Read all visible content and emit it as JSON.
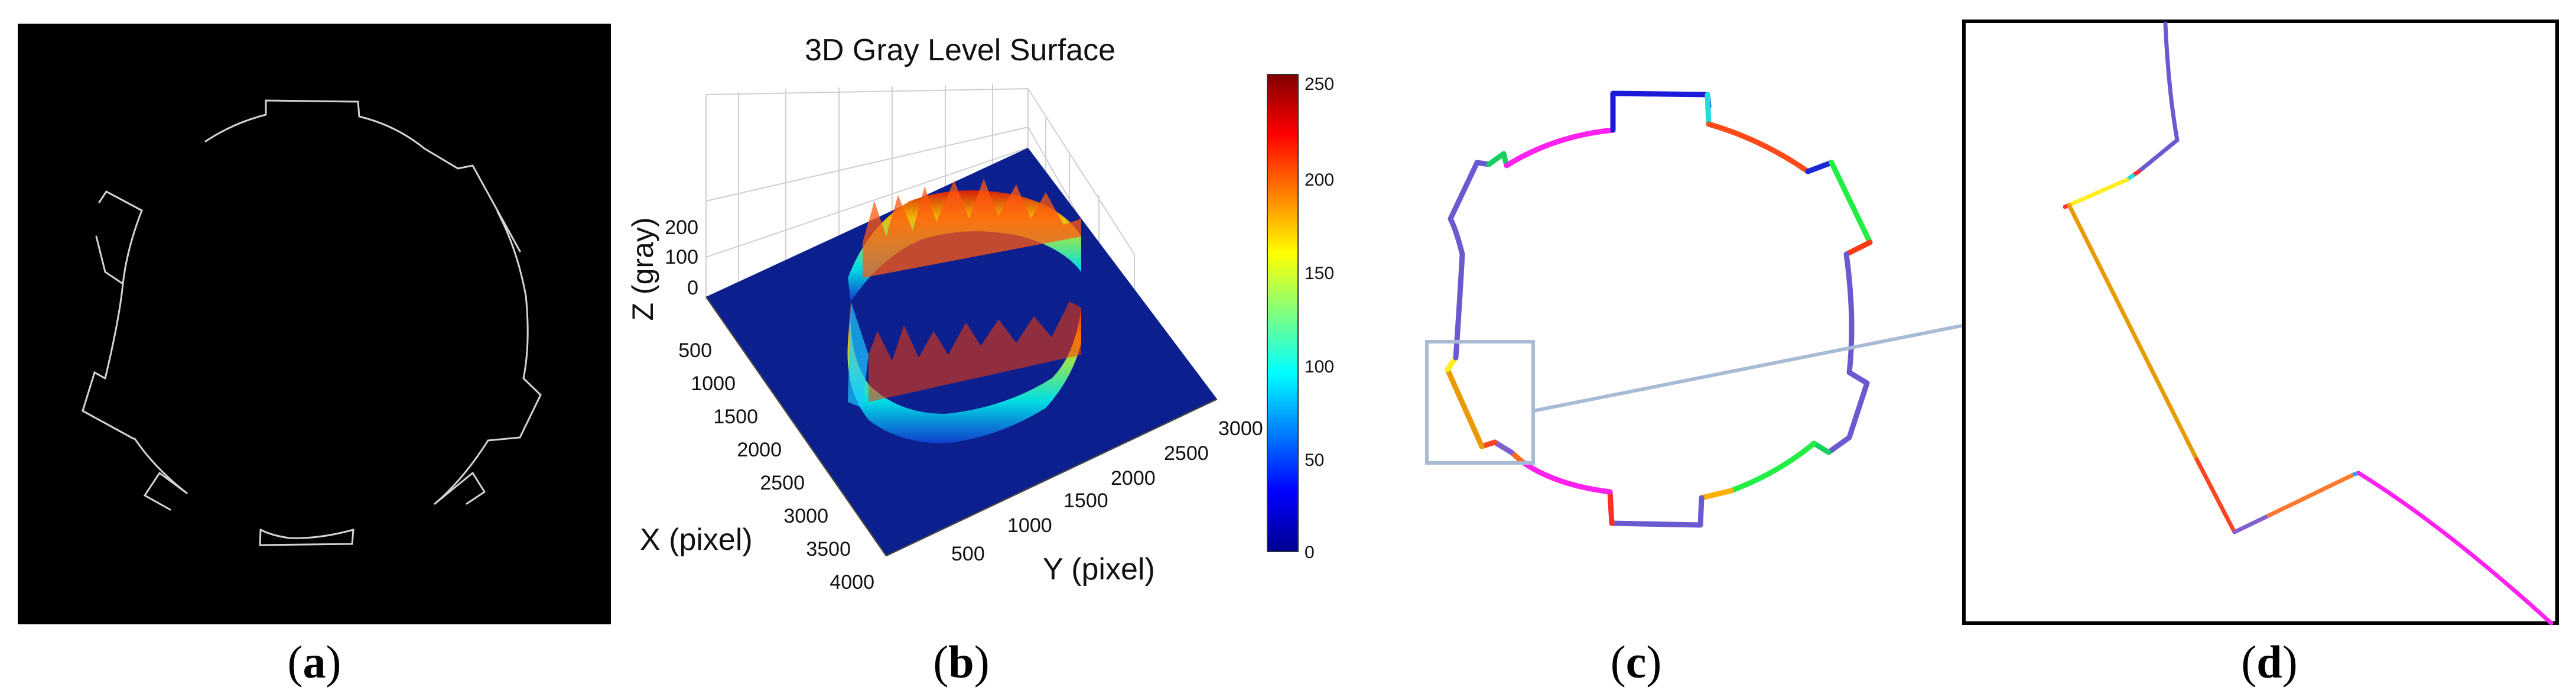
{
  "figure": {
    "captions": {
      "a": "a",
      "b": "b",
      "c": "c",
      "d": "d"
    }
  },
  "panel_b": {
    "title": "3D Gray Level Surface",
    "zlabel": "Z (gray)",
    "xlabel": "X (pixel)",
    "ylabel": "Y (pixel)",
    "colormap": "jet",
    "surface_color": "#0a1a8c",
    "chart_data": {
      "type": "surface",
      "title": "3D Gray Level Surface",
      "x_axis": {
        "label": "X (pixel)",
        "ticks": [
          "500",
          "1000",
          "1500",
          "2000",
          "2500",
          "3000",
          "3500",
          "4000"
        ]
      },
      "y_axis": {
        "label": "Y (pixel)",
        "ticks": [
          "500",
          "1000",
          "1500",
          "2000",
          "2500",
          "3000"
        ]
      },
      "z_axis": {
        "label": "Z (gray)",
        "ticks": [
          "0",
          "100",
          "200"
        ],
        "range": [
          0,
          255
        ]
      },
      "colorbar": {
        "ticks": [
          "0",
          "50",
          "100",
          "150",
          "200",
          "250"
        ],
        "range": [
          0,
          255
        ]
      }
    }
  },
  "colors": {
    "background_a": "#000000",
    "edge_a": "#d8d8d8",
    "zoom_box": "#a9bcd6",
    "frame_d": "#000000"
  }
}
